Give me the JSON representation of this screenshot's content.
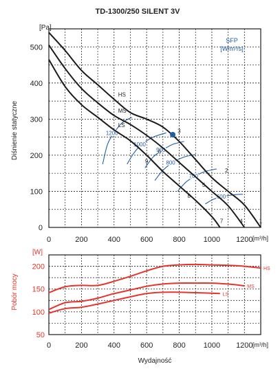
{
  "chart_data": [
    {
      "type": "line",
      "title": "TD-1300/250 SILENT 3V",
      "ylabel": "Dіśnienie statyczne",
      "yunit": "[Pa]",
      "xunit": "[m³/h]",
      "xlim": [
        0,
        1300
      ],
      "ylim": [
        0,
        550
      ],
      "x_ticks": [
        0,
        200,
        400,
        600,
        800,
        1000,
        1200
      ],
      "y_ticks": [
        0,
        100,
        200,
        300,
        400,
        500
      ],
      "grid": true,
      "series": [
        {
          "name": "HS",
          "x": [
            0,
            100,
            200,
            300,
            400,
            500,
            600,
            700,
            800,
            900,
            1000,
            1100,
            1200,
            1300
          ],
          "y": [
            540,
            490,
            435,
            395,
            355,
            318,
            300,
            278,
            238,
            188,
            138,
            100,
            62,
            0
          ]
        },
        {
          "name": "MS",
          "x": [
            0,
            100,
            200,
            300,
            400,
            500,
            600,
            700,
            800,
            900,
            1000,
            1100,
            1200
          ],
          "y": [
            505,
            440,
            385,
            345,
            310,
            285,
            255,
            220,
            180,
            140,
            100,
            60,
            0
          ]
        },
        {
          "name": "LS",
          "x": [
            0,
            100,
            200,
            300,
            400,
            500,
            600,
            700,
            800,
            900,
            1000,
            1050
          ],
          "y": [
            465,
            390,
            340,
            305,
            270,
            240,
            200,
            155,
            115,
            75,
            30,
            0
          ]
        }
      ],
      "sfp": {
        "label": "SFP",
        "unit": "[W/m³/s]",
        "curves": [
          {
            "label": "1200",
            "x": [
              330,
              360,
              400,
              450,
              510
            ],
            "y": [
              175,
              230,
              262,
              290,
              305
            ]
          },
          {
            "label": "1000",
            "x": [
              480,
              520,
              570,
              640,
              720
            ],
            "y": [
              175,
              205,
              230,
              250,
              262
            ]
          },
          {
            "label": "900",
            "x": [
              590,
              640,
              700,
              760,
              830
            ],
            "y": [
              165,
              195,
              215,
              230,
              238
            ]
          },
          {
            "label": "800",
            "x": [
              650,
              700,
              760,
              830,
              900
            ],
            "y": [
              130,
              158,
              180,
              195,
              202
            ]
          },
          {
            "label": "700",
            "x": [
              790,
              840,
              900,
              960,
              1030
            ],
            "y": [
              100,
              125,
              143,
              155,
              162
            ]
          },
          {
            "label": "600",
            "x": [
              960,
              1010,
              1070,
              1130,
              1190
            ],
            "y": [
              65,
              78,
              86,
              90,
              92
            ]
          }
        ]
      },
      "work_point": {
        "label": "3",
        "x": 760,
        "y": 257
      },
      "point_labels": [
        {
          "label": "1",
          "x": 1300,
          "y": 12
        },
        {
          "label": "2",
          "x": 1090,
          "y": 152
        },
        {
          "label": "3",
          "x": 800,
          "y": 262
        },
        {
          "label": "4",
          "x": 1180,
          "y": 12
        },
        {
          "label": "5",
          "x": 950,
          "y": 112
        },
        {
          "label": "6",
          "x": 680,
          "y": 205
        },
        {
          "label": "7",
          "x": 1060,
          "y": 12
        },
        {
          "label": "8",
          "x": 860,
          "y": 82
        },
        {
          "label": "9",
          "x": 600,
          "y": 178
        }
      ]
    },
    {
      "type": "line",
      "ylabel": "Pobór mocy",
      "yunit": "[W]",
      "xunit": "[m³/h]",
      "xlabel": "Wydajność",
      "xlim": [
        0,
        1300
      ],
      "ylim": [
        50,
        225
      ],
      "x_ticks": [
        0,
        200,
        400,
        600,
        800,
        1000,
        1200
      ],
      "y_ticks": [
        50,
        100,
        150,
        200
      ],
      "grid": true,
      "series": [
        {
          "name": "HS",
          "x": [
            0,
            100,
            200,
            300,
            400,
            500,
            600,
            700,
            800,
            900,
            1000,
            1100,
            1200,
            1300
          ],
          "y": [
            142,
            155,
            158,
            158,
            167,
            178,
            190,
            200,
            203,
            204,
            203,
            202,
            200,
            196
          ]
        },
        {
          "name": "MS",
          "x": [
            0,
            100,
            200,
            300,
            400,
            500,
            600,
            700,
            800,
            900,
            1000,
            1100,
            1200
          ],
          "y": [
            105,
            120,
            123,
            130,
            140,
            148,
            156,
            161,
            163,
            163,
            163,
            161,
            157
          ]
        },
        {
          "name": "LS",
          "x": [
            0,
            100,
            200,
            300,
            400,
            500,
            600,
            700,
            800,
            900,
            1000,
            1050
          ],
          "y": [
            97,
            107,
            110,
            117,
            125,
            133,
            140,
            143,
            143,
            142,
            141,
            140
          ]
        }
      ]
    }
  ],
  "colors": {
    "grid": "#1a1a1a",
    "curve": "#1a1a1a",
    "sfp": "#1f5fa8",
    "power": "#e8322a"
  }
}
